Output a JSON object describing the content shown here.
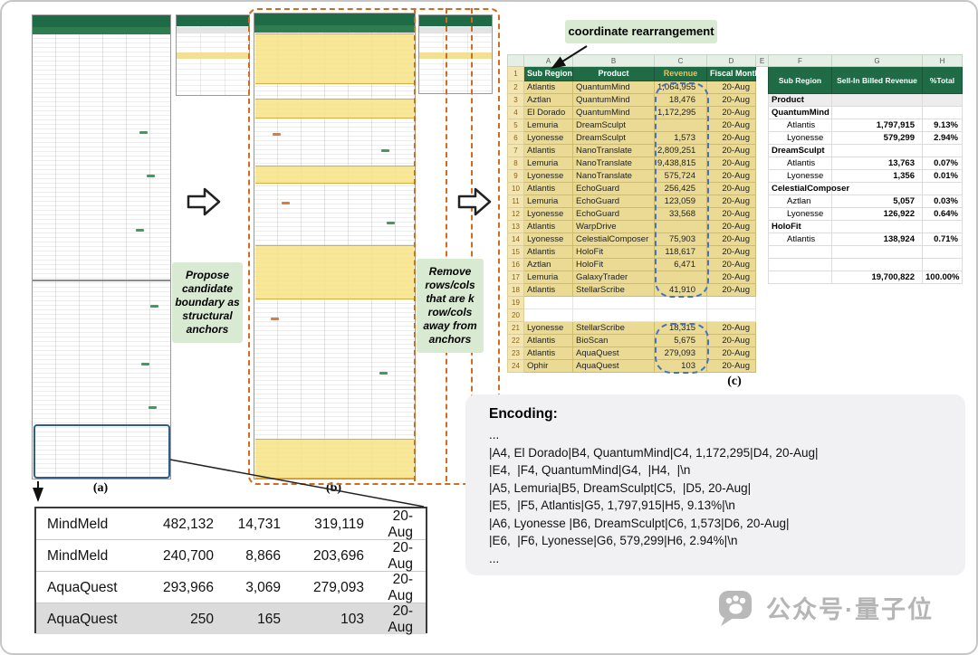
{
  "figure": {
    "panel_labels": {
      "a": "(a)",
      "b": "(b)",
      "c": "(c)"
    },
    "annotations": {
      "coordinate_rearrangement": "coordinate rearrangement",
      "propose_anchors": "Propose candidate boundary as structural anchors",
      "remove_anchors": "Remove rows/cols that are k row/cols away from anchors"
    },
    "watermark_text": "公众号·量子位",
    "colors": {
      "header_green": "#1F6B45",
      "highlight_khaki": "#EADA93",
      "anchor_orange": "#D26A1F",
      "capsule_blue": "#4472C4",
      "revenue_header_gold": "#F2C14E"
    }
  },
  "sheet_c": {
    "column_letters": [
      "A",
      "B",
      "C",
      "D",
      "E",
      "F",
      "G",
      "H"
    ],
    "left_header": {
      "sub_region": "Sub Region",
      "product": "Product",
      "revenue": "Revenue",
      "fiscal_month": "Fiscal Month"
    },
    "right_header": {
      "sub_region": "Sub Region",
      "billed_revenue": "Sell-In Billed Revenue",
      "pct_total": "%Total"
    },
    "left_rows": [
      {
        "n": 2,
        "region": "Atlantis",
        "product": "QuantumMind",
        "revenue": "1,064,955",
        "month": "20-Aug"
      },
      {
        "n": 3,
        "region": "Aztlan",
        "product": "QuantumMind",
        "revenue": "18,476",
        "month": "20-Aug"
      },
      {
        "n": 4,
        "region": "El Dorado",
        "product": "QuantumMind",
        "revenue": "1,172,295",
        "month": "20-Aug"
      },
      {
        "n": 5,
        "region": "Lemuria",
        "product": "DreamSculpt",
        "revenue": "",
        "month": "20-Aug"
      },
      {
        "n": 6,
        "region": "Lyonesse",
        "product": "DreamSculpt",
        "revenue": "1,573",
        "month": "20-Aug"
      },
      {
        "n": 7,
        "region": "Atlantis",
        "product": "NanoTranslate",
        "revenue": "2,809,251",
        "month": "20-Aug"
      },
      {
        "n": 8,
        "region": "Lemuria",
        "product": "NanoTranslate",
        "revenue": "9,438,815",
        "month": "20-Aug"
      },
      {
        "n": 9,
        "region": "Lyonesse",
        "product": "NanoTranslate",
        "revenue": "575,724",
        "month": "20-Aug"
      },
      {
        "n": 10,
        "region": "Atlantis",
        "product": "EchoGuard",
        "revenue": "256,425",
        "month": "20-Aug"
      },
      {
        "n": 11,
        "region": "Lemuria",
        "product": "EchoGuard",
        "revenue": "123,059",
        "month": "20-Aug"
      },
      {
        "n": 12,
        "region": "Lyonesse",
        "product": "EchoGuard",
        "revenue": "33,568",
        "month": "20-Aug"
      },
      {
        "n": 13,
        "region": "Atlantis",
        "product": "WarpDrive",
        "revenue": "",
        "month": "20-Aug"
      },
      {
        "n": 14,
        "region": "Lyonesse",
        "product": "CelestialComposer",
        "revenue": "75,903",
        "month": "20-Aug"
      },
      {
        "n": 15,
        "region": "Atlantis",
        "product": "HoloFit",
        "revenue": "118,617",
        "month": "20-Aug"
      },
      {
        "n": 16,
        "region": "Aztlan",
        "product": "HoloFit",
        "revenue": "6,471",
        "month": "20-Aug"
      },
      {
        "n": 17,
        "region": "Lemuria",
        "product": "GalaxyTrader",
        "revenue": "",
        "month": "20-Aug"
      },
      {
        "n": 18,
        "region": "Atlantis",
        "product": "StellarScribe",
        "revenue": "41,910",
        "month": "20-Aug"
      },
      {
        "n": 19,
        "region": "",
        "product": "",
        "revenue": "",
        "month": "",
        "empty": true
      },
      {
        "n": 20,
        "region": "",
        "product": "",
        "revenue": "",
        "month": "",
        "empty": true
      },
      {
        "n": 21,
        "region": "Lyonesse",
        "product": "StellarScribe",
        "revenue": "18,315",
        "month": "20-Aug"
      },
      {
        "n": 22,
        "region": "Atlantis",
        "product": "BioScan",
        "revenue": "5,675",
        "month": "20-Aug"
      },
      {
        "n": 23,
        "region": "Atlantis",
        "product": "AquaQuest",
        "revenue": "279,093",
        "month": "20-Aug"
      },
      {
        "n": 24,
        "region": "Ophir",
        "product": "AquaQuest",
        "revenue": "103",
        "month": "20-Aug"
      }
    ],
    "right_region": {
      "first_row": 3,
      "last_row": 17
    },
    "right_rows": {
      "3": {
        "label": "Product",
        "section": true
      },
      "4": {
        "label": "QuantumMind",
        "bold": true
      },
      "5": {
        "label": "Atlantis",
        "value": "1,797,915",
        "pct": "9.13%"
      },
      "6": {
        "label": "Lyonesse",
        "value": "579,299",
        "pct": "2.94%"
      },
      "7": {
        "label": "DreamSculpt",
        "bold": true
      },
      "8": {
        "label": "Atlantis",
        "value": "13,763",
        "pct": "0.07%"
      },
      "9": {
        "label": "Lyonesse",
        "value": "1,356",
        "pct": "0.01%"
      },
      "10": {
        "label": "CelestialComposer",
        "bold": true
      },
      "11": {
        "label": "Aztlan",
        "value": "5,057",
        "pct": "0.03%"
      },
      "12": {
        "label": "Lyonesse",
        "value": "126,922",
        "pct": "0.64%"
      },
      "13": {
        "label": "HoloFit",
        "bold": true
      },
      "14": {
        "label": "Atlantis",
        "value": "138,924",
        "pct": "0.71%"
      },
      "17": {
        "label": "",
        "value": "19,700,822",
        "pct": "100.00%",
        "total": true
      }
    }
  },
  "zoom_table": {
    "rows": [
      [
        "MindMeld",
        "482,132",
        "14,731",
        "319,119",
        "20-Aug"
      ],
      [
        "MindMeld",
        "240,700",
        "8,866",
        "203,696",
        "20-Aug"
      ],
      [
        "AquaQuest",
        "293,966",
        "3,069",
        "279,093",
        "20-Aug"
      ],
      [
        "AquaQuest",
        "250",
        "165",
        "103",
        "20-Aug"
      ]
    ]
  },
  "encoding": {
    "title": "Encoding:",
    "lines": [
      "...",
      "|A4, El Dorado|B4, QuantumMind|C4, 1,172,295|D4, 20-Aug|",
      "|E4,  |F4, QuantumMind|G4,  |H4,  |\\n",
      "|A5, Lemuria|B5, DreamSculpt|C5,  |D5, 20-Aug|",
      "|E5,  |F5, Atlantis|G5, 1,797,915|H5, 9.13%|\\n",
      "|A6, Lyonesse |B6, DreamSculpt|C6, 1,573|D6, 20-Aug|",
      "|E6,  |F6, Lyonesse|G6, 579,299|H6, 2.94%|\\n",
      "..."
    ]
  }
}
